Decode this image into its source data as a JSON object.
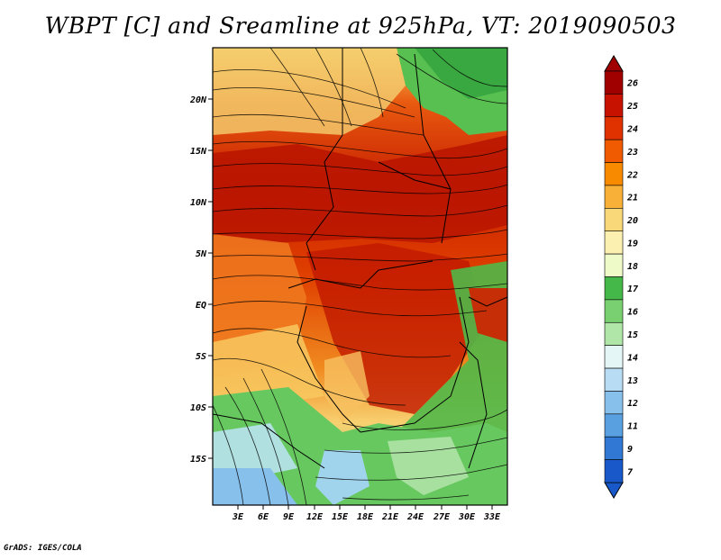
{
  "title": "WBPT [C] and Sreamline at 925hPa, VT: 2019090503",
  "credit": "GrADS: IGES/COLA",
  "map": {
    "lat_labels": [
      "20N",
      "15N",
      "10N",
      "5N",
      "EQ",
      "5S",
      "10S",
      "15S"
    ],
    "lon_labels": [
      "3E",
      "6E",
      "9E",
      "12E",
      "15E",
      "18E",
      "21E",
      "24E",
      "27E",
      "30E",
      "33E"
    ]
  },
  "colorbar": {
    "labels": [
      "26",
      "25",
      "24",
      "23",
      "22",
      "21",
      "20",
      "19",
      "18",
      "17",
      "16",
      "15",
      "14",
      "13",
      "12",
      "11",
      "9",
      "7"
    ],
    "colors": [
      "#a00000",
      "#c81200",
      "#e03200",
      "#f05a00",
      "#f88a00",
      "#f8b038",
      "#f8d878",
      "#fcf0b0",
      "#eefac8",
      "#44b848",
      "#78d070",
      "#b0e6a8",
      "#e4f6f6",
      "#b8dcf4",
      "#88c0ec",
      "#58a0e0",
      "#3078d4",
      "#1858c8"
    ]
  }
}
